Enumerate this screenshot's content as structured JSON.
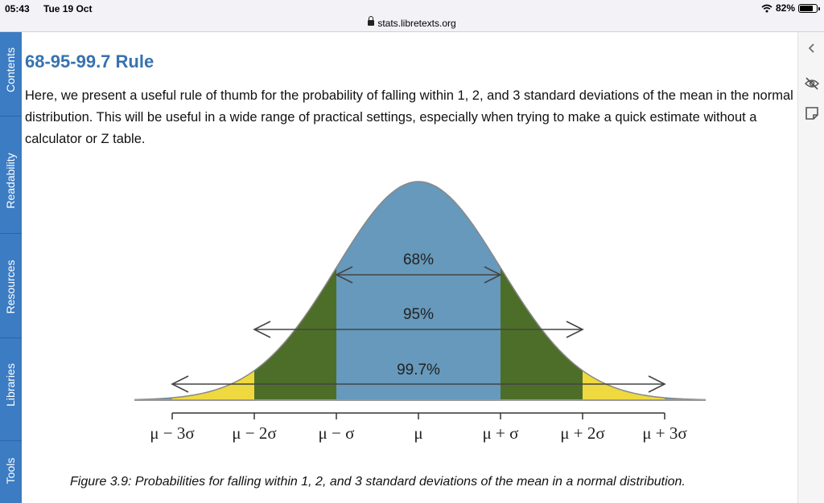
{
  "status_bar": {
    "time": "05:43",
    "date": "Tue 19 Oct",
    "battery": "82%",
    "battery_level": 0.82
  },
  "browser": {
    "url": "stats.libretexts.org"
  },
  "sidebar": {
    "tabs": [
      {
        "label": "Contents"
      },
      {
        "label": "Readability"
      },
      {
        "label": "Resources"
      },
      {
        "label": "Libraries"
      },
      {
        "label": "Tools"
      }
    ]
  },
  "article": {
    "title": "68-95-99.7 Rule",
    "paragraph": "Here, we present a useful rule of thumb for the probability of falling within 1, 2, and 3 standard deviations of the mean in the normal distribution. This will be useful in a wide range of practical settings, especially when trying to make a quick estimate without a calculator or Z table.",
    "figure_caption": "Figure 3.9: Probabilities for falling within 1, 2, and 3 standard deviations of the mean in a normal distribution."
  },
  "right_panel": {
    "icons": [
      "chevron-left-icon",
      "eye-slash-icon",
      "note-icon"
    ]
  },
  "chart_data": {
    "type": "area",
    "title": "",
    "x_ticks": [
      "μ − 3σ",
      "μ − 2σ",
      "μ − σ",
      "μ",
      "μ + σ",
      "μ + 2σ",
      "μ + 3σ"
    ],
    "xlim": [
      -3.5,
      3.5
    ],
    "regions": [
      {
        "label": "68%",
        "from": -1,
        "to": 1,
        "color": "#6699bb"
      },
      {
        "label": "95%",
        "from": -2,
        "to": 2,
        "color": "#4d6e28"
      },
      {
        "label": "99.7%",
        "from": -3,
        "to": 3,
        "color": "#efd940"
      }
    ],
    "tail_color": "#6699bb",
    "curve_color": "#888888"
  }
}
